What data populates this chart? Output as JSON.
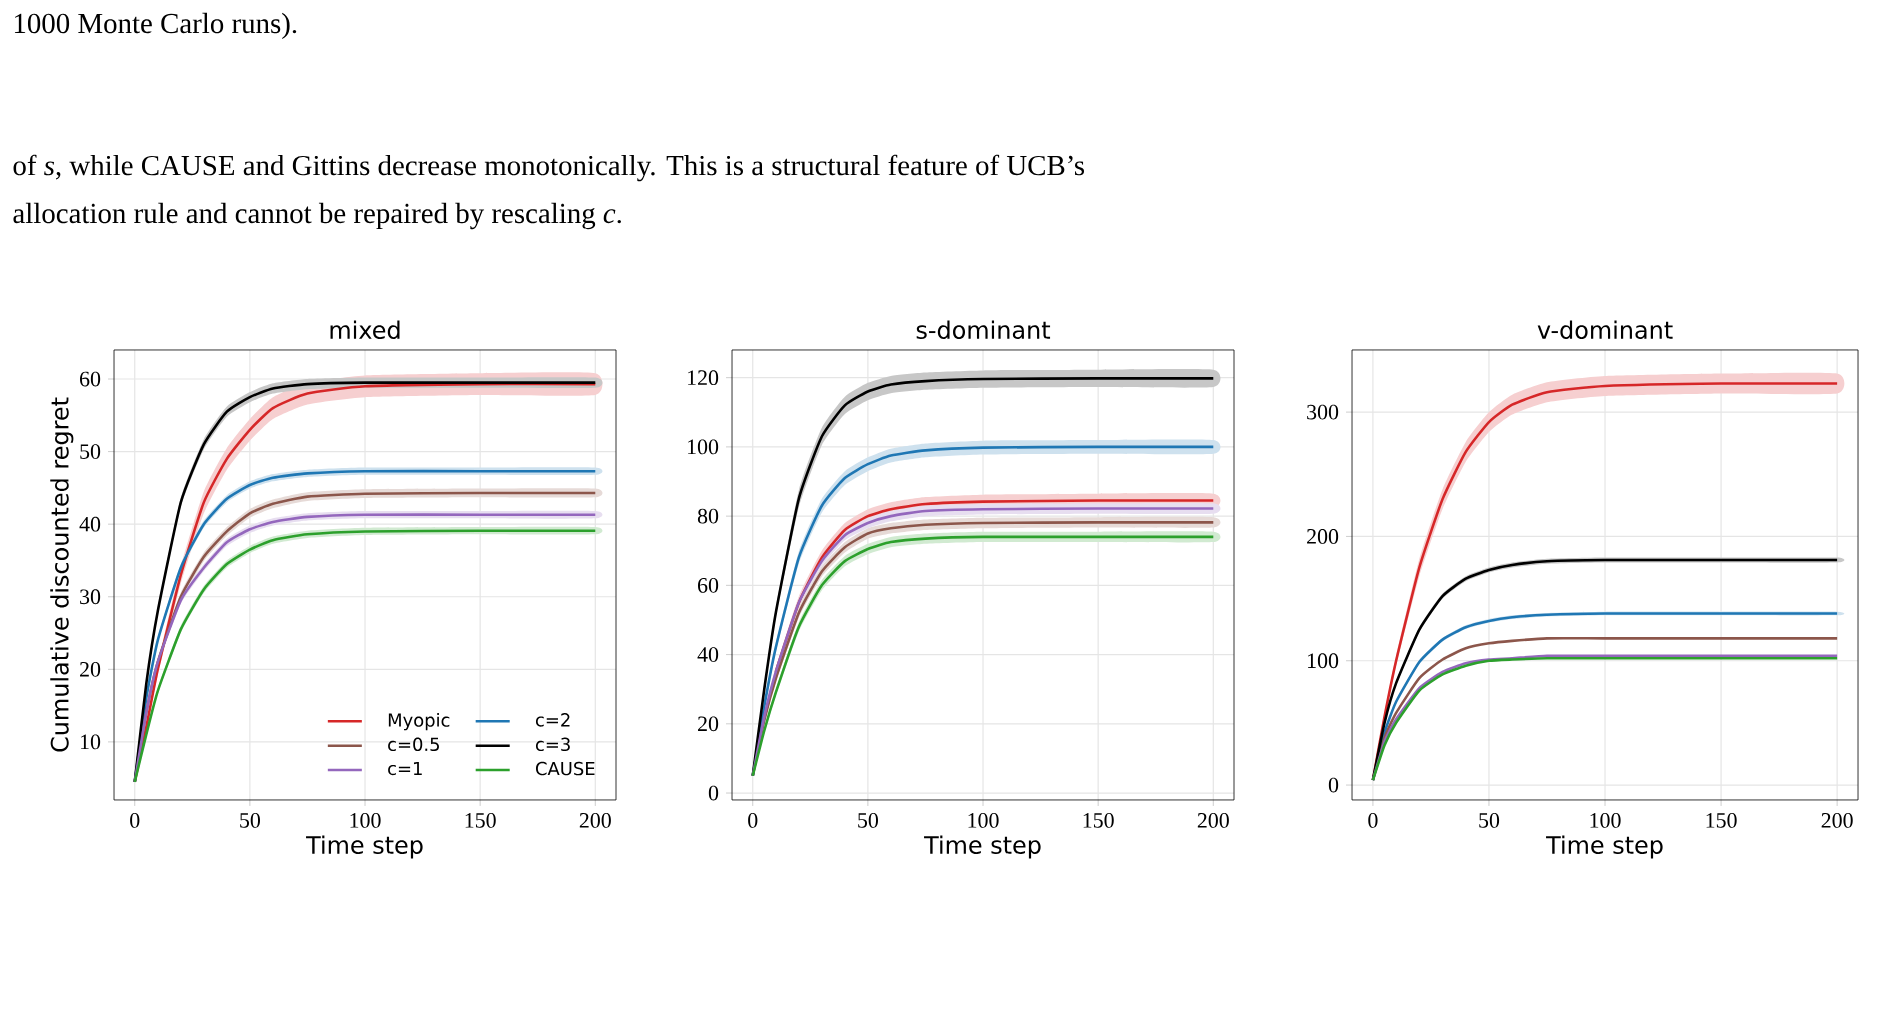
{
  "chart_data": [
    {
      "type": "line",
      "title": "mixed",
      "xlabel": "Time step",
      "ylabel": "Cumulative discounted regret",
      "annotations": [
        "1000 Monte Carlo runs).",
        "of *s*, while CAUSE and Gittins decrease monotonically.  This is a structural feature of UCB’s",
        "allocation rule and cannot be repaired by rescaling *c*."
      ],
      "x": [
        0,
        5,
        10,
        20,
        30,
        40,
        50,
        60,
        75,
        100,
        150,
        200
      ],
      "xlim": [
        -9,
        209
      ],
      "xticks": [
        0,
        50,
        100,
        150,
        200
      ],
      "ylim": [
        2,
        64
      ],
      "yticks": [
        10,
        20,
        30,
        40,
        50,
        60
      ],
      "grid": true,
      "legend": "bottom right",
      "series": [
        {
          "name": "Myopic",
          "color": "#d62728",
          "values": [
            4.5,
            12,
            20,
            33,
            43,
            49,
            53,
            56,
            58,
            59,
            59.3,
            59.3
          ],
          "lower": [
            4.3,
            11.5,
            19.2,
            31.8,
            41.5,
            47.5,
            51.5,
            54.5,
            56.5,
            57.5,
            57.8,
            57.8
          ],
          "upper": [
            4.7,
            12.5,
            20.8,
            34.2,
            44.5,
            50.5,
            54.5,
            57.5,
            59.5,
            60.5,
            60.8,
            60.8
          ]
        },
        {
          "name": "c=2",
          "color": "#1f77b4",
          "values": [
            4.5,
            16,
            24,
            34,
            40,
            43.5,
            45.4,
            46.4,
            47,
            47.3,
            47.3,
            47.3
          ],
          "lower": [
            4.4,
            15.7,
            23.6,
            33.5,
            39.5,
            43,
            44.9,
            45.9,
            46.5,
            46.8,
            46.8,
            46.8
          ],
          "upper": [
            4.6,
            16.3,
            24.4,
            34.5,
            40.5,
            44,
            45.9,
            46.9,
            47.5,
            47.8,
            47.8,
            47.8
          ]
        },
        {
          "name": "c=0.5",
          "color": "#8c564b",
          "values": [
            4.5,
            14,
            21,
            30,
            35.5,
            39,
            41.5,
            42.8,
            43.8,
            44.2,
            44.3,
            44.3
          ],
          "lower": [
            4.4,
            13.7,
            20.5,
            29.4,
            34.9,
            38.4,
            40.9,
            42.2,
            43.2,
            43.6,
            43.7,
            43.7
          ],
          "upper": [
            4.6,
            14.3,
            21.5,
            30.6,
            36.1,
            39.6,
            42.1,
            43.4,
            44.4,
            44.8,
            44.9,
            44.9
          ]
        },
        {
          "name": "c=3",
          "color": "#000000",
          "values": [
            4.5,
            18,
            28,
            43,
            51,
            55.5,
            57.5,
            58.7,
            59.3,
            59.5,
            59.5,
            59.5
          ],
          "lower": [
            4.4,
            17.6,
            27.5,
            42.4,
            50.3,
            54.8,
            56.8,
            58,
            58.6,
            58.8,
            58.8,
            58.8
          ],
          "upper": [
            4.6,
            18.4,
            28.5,
            43.6,
            51.7,
            56.2,
            58.2,
            59.4,
            60,
            60.2,
            60.2,
            60.2
          ]
        },
        {
          "name": "c=1",
          "color": "#9467bd",
          "values": [
            4.5,
            14,
            21,
            29.5,
            34,
            37.5,
            39.3,
            40.3,
            41,
            41.3,
            41.3,
            41.3
          ],
          "lower": [
            4.4,
            13.7,
            20.6,
            29,
            33.5,
            37,
            38.8,
            39.8,
            40.5,
            40.8,
            40.8,
            40.8
          ],
          "upper": [
            4.6,
            14.3,
            21.4,
            30,
            34.5,
            38,
            39.8,
            40.8,
            41.5,
            41.8,
            41.8,
            41.8
          ]
        },
        {
          "name": "CAUSE",
          "color": "#2ca02c",
          "values": [
            4.5,
            11,
            17,
            25.5,
            31,
            34.5,
            36.5,
            37.8,
            38.6,
            39,
            39.1,
            39.1
          ],
          "lower": [
            4.4,
            10.7,
            16.6,
            25,
            30.5,
            34,
            36,
            37.3,
            38.1,
            38.5,
            38.6,
            38.6
          ],
          "upper": [
            4.6,
            11.3,
            17.4,
            26,
            31.5,
            35,
            37,
            38.3,
            39.1,
            39.5,
            39.6,
            39.6
          ]
        }
      ]
    },
    {
      "type": "line",
      "title": "s-dominant",
      "xlabel": "Time step",
      "x": [
        0,
        5,
        10,
        20,
        30,
        40,
        50,
        60,
        75,
        100,
        150,
        200
      ],
      "xlim": [
        -9,
        209
      ],
      "xticks": [
        0,
        50,
        100,
        150,
        200
      ],
      "ylim": [
        -2,
        128
      ],
      "yticks": [
        0,
        20,
        40,
        60,
        80,
        100,
        120
      ],
      "grid": true,
      "series": [
        {
          "color": "#d62728",
          "values": [
            null,
            null,
            35,
            55,
            68,
            76,
            80,
            82,
            83.5,
            84.2,
            84.5,
            84.5
          ],
          "lower": [
            4.8,
            21,
            33.8,
            53.2,
            66,
            74,
            78,
            80,
            81.5,
            82.2,
            82.5,
            82.5
          ],
          "upper": [
            5.2,
            23,
            36.2,
            56.8,
            70,
            78,
            82,
            84,
            85.5,
            86.2,
            86.5,
            86.5
          ]
        },
        {
          "color": "#1f77b4",
          "values": [
            5,
            25,
            42,
            68,
            83,
            91,
            95,
            97.5,
            99,
            99.8,
            100,
            100
          ],
          "lower": [
            4.8,
            24,
            40.8,
            66.2,
            81,
            89,
            93,
            95.5,
            97,
            97.8,
            98,
            98
          ],
          "upper": [
            5.2,
            26,
            43.2,
            69.8,
            85,
            93,
            97,
            99.5,
            101,
            101.8,
            102,
            102
          ]
        },
        {
          "color": "#8c564b",
          "values": [
            5,
            21,
            33,
            52,
            64,
            71,
            75,
            76.5,
            77.5,
            78,
            78.2,
            78.2
          ],
          "lower": [
            4.8,
            20.2,
            32,
            50.6,
            62.5,
            69.5,
            73.5,
            75,
            76,
            76.5,
            76.7,
            76.7
          ],
          "upper": [
            5.2,
            21.8,
            34,
            53.4,
            65.5,
            72.5,
            76.5,
            78,
            79,
            79.5,
            79.7,
            79.7
          ]
        },
        {
          "color": "#000000",
          "values": [
            5,
            30,
            52,
            85,
            103,
            112,
            116,
            118,
            119,
            119.6,
            119.8,
            119.8
          ],
          "lower": [
            4.8,
            29,
            50.5,
            82.5,
            100.5,
            109.5,
            113.5,
            115.5,
            116.5,
            117.1,
            117.3,
            117.3
          ],
          "upper": [
            5.2,
            31,
            53.5,
            87.5,
            105.5,
            114.5,
            118.5,
            120.5,
            121.5,
            122.1,
            122.3,
            122.3
          ]
        },
        {
          "color": "#9467bd",
          "values": [
            5,
            22,
            35,
            55,
            67,
            74.5,
            78,
            80,
            81.5,
            82,
            82.2,
            82.2
          ],
          "lower": [
            4.8,
            21.2,
            34,
            53.6,
            65.5,
            73,
            76.5,
            78.5,
            80,
            80.5,
            80.7,
            80.7
          ],
          "upper": [
            5.2,
            22.8,
            36,
            56.4,
            68.5,
            76,
            79.5,
            81.5,
            83,
            83.5,
            83.7,
            83.7
          ]
        },
        {
          "color": "#2ca02c",
          "values": [
            5,
            18,
            29,
            48,
            60,
            67,
            70.5,
            72.5,
            73.5,
            74,
            74,
            74
          ],
          "lower": [
            4.8,
            17.2,
            28,
            46.6,
            58.5,
            65.5,
            69,
            71,
            72,
            72.5,
            72.5,
            72.5
          ],
          "upper": [
            5.2,
            18.8,
            30,
            49.4,
            61.5,
            68.5,
            72,
            74,
            75,
            75.5,
            75.5,
            75.5
          ]
        }
      ]
    },
    {
      "type": "line",
      "title": "v-dominant",
      "xlabel": "Time step",
      "x": [
        0,
        5,
        10,
        20,
        30,
        40,
        50,
        60,
        75,
        100,
        150,
        200
      ],
      "xlim": [
        -9,
        209
      ],
      "xticks": [
        0,
        50,
        100,
        150,
        200
      ],
      "ylim": [
        -12,
        350
      ],
      "yticks": [
        0,
        100,
        200,
        300
      ],
      "grid": true,
      "series": [
        {
          "color": "#d62728",
          "values": [
            4,
            55,
            100,
            175,
            230,
            268,
            292,
            306,
            316,
            321,
            323,
            323
          ],
          "lower": [
            3.8,
            52,
            96,
            168,
            222,
            260,
            284,
            298,
            308,
            313,
            315,
            315
          ],
          "upper": [
            4.2,
            58,
            104,
            182,
            238,
            276,
            300,
            314,
            324,
            329,
            331,
            331
          ]
        },
        {
          "color": "#1f77b4",
          "values": [
            4,
            42,
            67,
            99,
            117,
            127,
            132,
            135,
            137,
            138,
            138,
            138
          ],
          "lower": [
            3.9,
            41.3,
            66,
            97.5,
            115.5,
            125.5,
            130.5,
            133.5,
            135.5,
            136.5,
            136.5,
            136.5
          ],
          "upper": [
            4.1,
            42.7,
            68,
            100.5,
            118.5,
            128.5,
            133.5,
            136.5,
            138.5,
            139.5,
            139.5,
            139.5
          ]
        },
        {
          "color": "#8c564b",
          "values": [
            4,
            38,
            58,
            86,
            101,
            110,
            114,
            116,
            118,
            118,
            118,
            118
          ]
        },
        {
          "color": "#000000",
          "values": [
            4,
            50,
            82,
            125,
            152,
            166,
            173,
            177,
            180,
            181,
            181,
            181
          ],
          "lower": [
            3.9,
            49,
            80.5,
            123,
            150,
            164,
            171,
            175,
            178,
            179,
            179,
            179
          ],
          "upper": [
            4.1,
            51,
            83.5,
            127,
            154,
            168,
            175,
            179,
            182,
            183,
            183,
            183
          ]
        },
        {
          "color": "#9467bd",
          "values": [
            4,
            35,
            53,
            78,
            91,
            98,
            101,
            102,
            104,
            104,
            104,
            104
          ]
        },
        {
          "color": "#2ca02c",
          "values": [
            4,
            32,
            50,
            76,
            89,
            96,
            100,
            101,
            102,
            102,
            102,
            102
          ]
        }
      ]
    }
  ]
}
